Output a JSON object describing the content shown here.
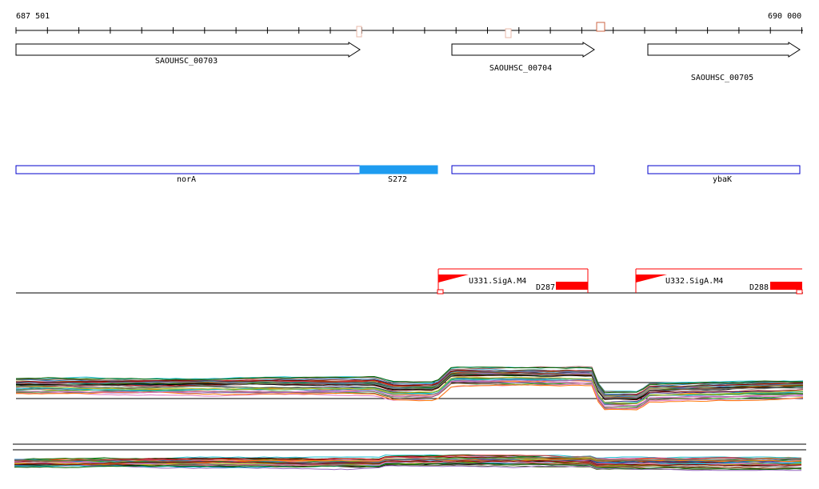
{
  "ruler": {
    "start_label": "687 501",
    "end_label": "690 000"
  },
  "genes": [
    {
      "name": "SAOUHSC_00703"
    },
    {
      "name": "SAOUHSC_00704"
    },
    {
      "name": "SAOUHSC_00705"
    }
  ],
  "annotations": [
    {
      "name": "norA"
    },
    {
      "name": "S272"
    },
    {
      "name": ""
    },
    {
      "name": "ybaK"
    }
  ],
  "promoters": [
    {
      "name": "U331.SigA.M4",
      "terminator": "D287"
    },
    {
      "name": "U332.SigA.M4",
      "terminator": "D288"
    }
  ],
  "colors": {
    "annotation_border": "#0000cc",
    "annotation_fill_highlight": "#1e9cf0",
    "promoter_red": "#ff0000",
    "marker_outline": "#cc6644"
  }
}
